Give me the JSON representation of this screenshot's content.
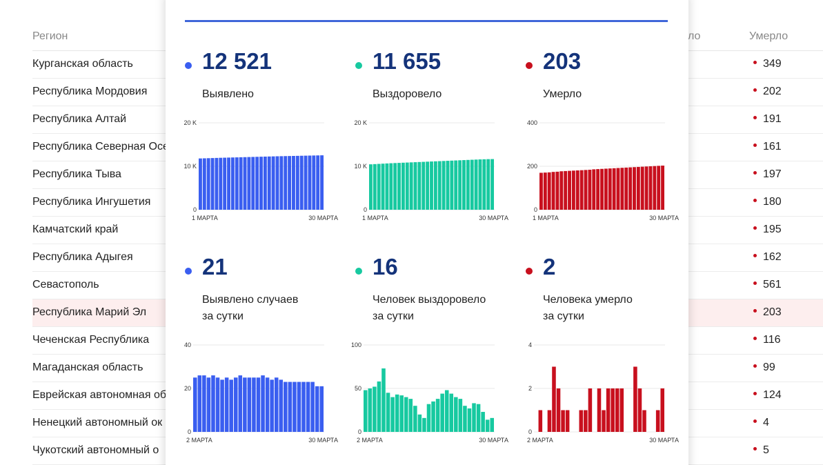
{
  "table": {
    "headers": {
      "region": "Регион",
      "recovered_partial": "ло",
      "died": "Умерло"
    },
    "rows": [
      {
        "region": "Курганская область",
        "died": "349"
      },
      {
        "region": "Республика Мордовия",
        "died": "202"
      },
      {
        "region": "Республика Алтай",
        "died": "191"
      },
      {
        "region": "Республика Северная Осе",
        "died": "161"
      },
      {
        "region": "Республика Тыва",
        "died": "197"
      },
      {
        "region": "Республика Ингушетия",
        "died": "180"
      },
      {
        "region": "Камчатский край",
        "died": "195"
      },
      {
        "region": "Республика Адыгея",
        "died": "162"
      },
      {
        "region": "Севастополь",
        "died": "561"
      },
      {
        "region": "Республика Марий Эл",
        "died": "203",
        "highlighted": true
      },
      {
        "region": "Чеченская Республика",
        "died": "116"
      },
      {
        "region": "Магаданская область",
        "died": "99"
      },
      {
        "region": "Еврейская автономная об",
        "died": "124"
      },
      {
        "region": "Ненецкий автономный ок",
        "died": "4"
      },
      {
        "region": "Чукотский автономный о",
        "died": "5"
      }
    ]
  },
  "colors": {
    "blue": "#3a5ef0",
    "green": "#17c9a0",
    "red": "#c8101e",
    "navy": "#14337a",
    "accent_line": "#3f66d9"
  },
  "stats": [
    {
      "value": "12 521",
      "label1": "Выявлено",
      "label2": "",
      "color": "#3a5ef0"
    },
    {
      "value": "11 655",
      "label1": "Выздоровело",
      "label2": "",
      "color": "#17c9a0"
    },
    {
      "value": "203",
      "label1": "Умерло",
      "label2": "",
      "color": "#c8101e"
    },
    {
      "value": "21",
      "label1": "Выявлено случаев",
      "label2": "за сутки",
      "color": "#3a5ef0"
    },
    {
      "value": "16",
      "label1": "Человек выздоровело",
      "label2": "за сутки",
      "color": "#17c9a0"
    },
    {
      "value": "2",
      "label1": "Человека умерло",
      "label2": "за сутки",
      "color": "#c8101e"
    }
  ],
  "chart_data": [
    {
      "type": "bar",
      "title": "Выявлено",
      "color": "#3a5ef0",
      "yticks": [
        "0",
        "10 K",
        "20 K"
      ],
      "ylim": [
        0,
        20000
      ],
      "xlabels": [
        "1 МАРТА",
        "30 МАРТА"
      ],
      "values": [
        11800,
        11830,
        11860,
        11890,
        11920,
        11950,
        11975,
        12000,
        12025,
        12050,
        12075,
        12100,
        12125,
        12150,
        12175,
        12200,
        12225,
        12250,
        12275,
        12300,
        12320,
        12340,
        12360,
        12380,
        12400,
        12420,
        12440,
        12460,
        12480,
        12500,
        12521
      ]
    },
    {
      "type": "bar",
      "title": "Выздоровело",
      "color": "#17c9a0",
      "yticks": [
        "0",
        "10 K",
        "20 K"
      ],
      "ylim": [
        0,
        20000
      ],
      "xlabels": [
        "1 МАРТА",
        "30 МАРТА"
      ],
      "values": [
        10450,
        10500,
        10550,
        10600,
        10650,
        10700,
        10740,
        10780,
        10820,
        10860,
        10900,
        10940,
        10980,
        11020,
        11060,
        11100,
        11140,
        11180,
        11220,
        11260,
        11300,
        11340,
        11380,
        11420,
        11460,
        11500,
        11540,
        11580,
        11610,
        11640,
        11655
      ]
    },
    {
      "type": "bar",
      "title": "Умерло",
      "color": "#c8101e",
      "yticks": [
        "0",
        "200",
        "400"
      ],
      "ylim": [
        0,
        400
      ],
      "xlabels": [
        "1 МАРТА",
        "30 МАРТА"
      ],
      "values": [
        170,
        171,
        172,
        174,
        175,
        177,
        178,
        179,
        180,
        181,
        182,
        183,
        184,
        186,
        187,
        188,
        189,
        190,
        191,
        192,
        193,
        194,
        195,
        196,
        197,
        198,
        199,
        200,
        201,
        202,
        203
      ]
    },
    {
      "type": "bar",
      "title": "Выявлено случаев за сутки",
      "color": "#3a5ef0",
      "yticks": [
        "0",
        "20",
        "40"
      ],
      "ylim": [
        0,
        40
      ],
      "xlabels": [
        "2 МАРТА",
        "30 МАРТА"
      ],
      "values": [
        25,
        26,
        26,
        25,
        26,
        25,
        24,
        25,
        24,
        25,
        26,
        25,
        25,
        25,
        25,
        26,
        25,
        24,
        25,
        24,
        23,
        23,
        23,
        23,
        23,
        23,
        23,
        21,
        21
      ]
    },
    {
      "type": "bar",
      "title": "Человек выздоровело за сутки",
      "color": "#17c9a0",
      "yticks": [
        "0",
        "50",
        "100"
      ],
      "ylim": [
        0,
        100
      ],
      "xlabels": [
        "2 МАРТА",
        "30 МАРТА"
      ],
      "values": [
        48,
        50,
        52,
        58,
        73,
        45,
        40,
        43,
        42,
        40,
        38,
        30,
        20,
        16,
        32,
        35,
        38,
        44,
        48,
        44,
        40,
        38,
        30,
        27,
        33,
        32,
        23,
        14,
        16
      ]
    },
    {
      "type": "bar",
      "title": "Человека умерло за сутки",
      "color": "#c8101e",
      "yticks": [
        "0",
        "2",
        "4"
      ],
      "ylim": [
        0,
        4
      ],
      "xlabels": [
        "2 МАРТА",
        "30 МАРТА"
      ],
      "values": [
        0,
        1,
        0,
        1,
        3,
        2,
        1,
        1,
        0,
        0,
        1,
        1,
        2,
        0,
        2,
        1,
        2,
        2,
        2,
        2,
        0,
        0,
        3,
        2,
        1,
        0,
        0,
        1,
        2
      ]
    }
  ]
}
